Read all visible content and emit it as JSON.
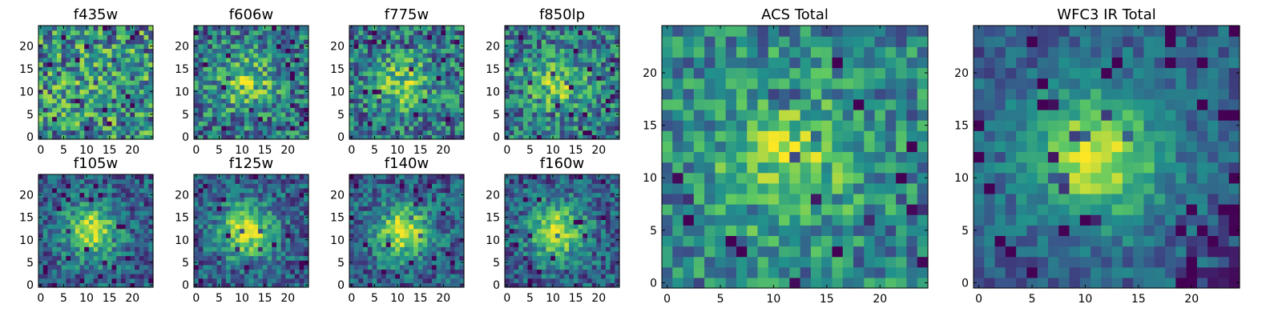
{
  "chart_data": [
    {
      "type": "heatmap",
      "title": "f435w",
      "seed": 11,
      "kind": "noise",
      "xticks": [
        0,
        5,
        10,
        15,
        20
      ],
      "yticks": [
        0,
        5,
        10,
        15,
        20
      ],
      "xlim": [
        0,
        24
      ],
      "ylim": [
        0,
        24
      ]
    },
    {
      "type": "heatmap",
      "title": "f606w",
      "seed": 22,
      "kind": "weak",
      "xticks": [
        0,
        5,
        10,
        15,
        20
      ],
      "yticks": [
        0,
        5,
        10,
        15,
        20
      ],
      "xlim": [
        0,
        24
      ],
      "ylim": [
        0,
        24
      ]
    },
    {
      "type": "heatmap",
      "title": "f775w",
      "seed": 33,
      "kind": "weak",
      "xticks": [
        0,
        5,
        10,
        15,
        20
      ],
      "yticks": [
        0,
        5,
        10,
        15,
        20
      ],
      "xlim": [
        0,
        24
      ],
      "ylim": [
        0,
        24
      ]
    },
    {
      "type": "heatmap",
      "title": "f850lp",
      "seed": 44,
      "kind": "weak",
      "xticks": [
        0,
        5,
        10,
        15,
        20
      ],
      "yticks": [
        0,
        5,
        10,
        15,
        20
      ],
      "xlim": [
        0,
        24
      ],
      "ylim": [
        0,
        24
      ]
    },
    {
      "type": "heatmap",
      "title": "f105w",
      "seed": 55,
      "kind": "strong",
      "xticks": [
        0,
        5,
        10,
        15,
        20
      ],
      "yticks": [
        0,
        5,
        10,
        15,
        20
      ],
      "xlim": [
        0,
        24
      ],
      "ylim": [
        0,
        24
      ]
    },
    {
      "type": "heatmap",
      "title": "f125w",
      "seed": 66,
      "kind": "strong",
      "xticks": [
        0,
        5,
        10,
        15,
        20
      ],
      "yticks": [
        0,
        5,
        10,
        15,
        20
      ],
      "xlim": [
        0,
        24
      ],
      "ylim": [
        0,
        24
      ]
    },
    {
      "type": "heatmap",
      "title": "f140w",
      "seed": 77,
      "kind": "strong",
      "xticks": [
        0,
        5,
        10,
        15,
        20
      ],
      "yticks": [
        0,
        5,
        10,
        15,
        20
      ],
      "xlim": [
        0,
        24
      ],
      "ylim": [
        0,
        24
      ]
    },
    {
      "type": "heatmap",
      "title": "f160w",
      "seed": 88,
      "kind": "strong",
      "xticks": [
        0,
        5,
        10,
        15,
        20
      ],
      "yticks": [
        0,
        5,
        10,
        15,
        20
      ],
      "xlim": [
        0,
        24
      ],
      "ylim": [
        0,
        24
      ]
    },
    {
      "type": "heatmap",
      "title": "ACS Total",
      "seed": 99,
      "kind": "acs",
      "xticks": [
        0,
        5,
        10,
        15,
        20
      ],
      "yticks": [
        0,
        5,
        10,
        15,
        20
      ],
      "xlim": [
        0,
        24
      ],
      "ylim": [
        0,
        24
      ]
    },
    {
      "type": "heatmap",
      "title": "WFC3 IR Total",
      "seed": 123,
      "kind": "ir",
      "xticks": [
        0,
        5,
        10,
        15,
        20
      ],
      "yticks": [
        0,
        5,
        10,
        15,
        20
      ],
      "xlim": [
        0,
        24
      ],
      "ylim": [
        0,
        24
      ]
    }
  ],
  "colormap": [
    "#440154",
    "#3b528b",
    "#21918c",
    "#5ec962",
    "#fde725"
  ],
  "grid_size": 25
}
